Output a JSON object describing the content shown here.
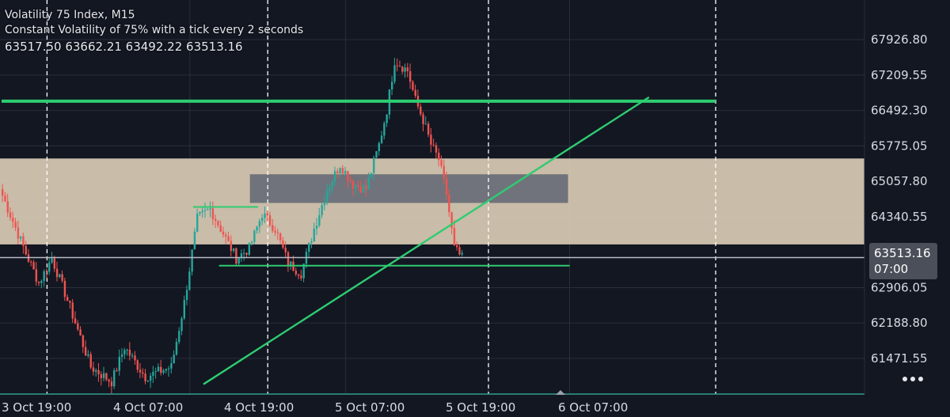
{
  "legend": {
    "symbol": "Volatility 75 Index, M15",
    "description": "Constant Volatility of 75% with a tick every 2 seconds",
    "ohlc": "63517.50 63662.21 63492.22 63513.16"
  },
  "price_tag": {
    "price": "63513.16",
    "countdown": "07:00"
  },
  "colors": {
    "background": "#131722",
    "grid": "#2a2e39",
    "up": "#26a69a",
    "down": "#ef5350",
    "trendline": "#2ecc71",
    "zone": "#d9cbb4",
    "inner_zone": "#6b6f78"
  },
  "chart_data": {
    "type": "candlestick",
    "ylim": [
      60900,
      68300
    ],
    "y_ticks": [
      "67926.80",
      "67209.55",
      "66492.30",
      "65775.05",
      "65057.80",
      "64340.55",
      "62906.05",
      "62188.80",
      "61471.55"
    ],
    "x_ticks": [
      "3 Oct 19:00",
      "4 Oct 07:00",
      "4 Oct 19:00",
      "5 Oct 07:00",
      "5 Oct 19:00",
      "6 Oct 07:00"
    ],
    "session_markers": [
      "3 Oct 19:00",
      "4 Oct 19:00",
      "5 Oct 19:00",
      "6 Oct 07:00"
    ],
    "last_price": 63513.16,
    "horizontal_levels": [
      {
        "value": 66680,
        "from": 0,
        "to": 220
      },
      {
        "value": 64540,
        "from": 59,
        "to": 79
      },
      {
        "value": 63350,
        "from": 67,
        "to": 175
      }
    ],
    "zones": [
      {
        "from_value": 63780,
        "to_value": 65520,
        "start": 0,
        "end": 220
      },
      {
        "from_value": 64620,
        "to_value": 65200,
        "start": 77,
        "end": 175
      }
    ],
    "trendline": {
      "from": [
        50,
        60950
      ],
      "to": [
        158,
        66760
      ]
    },
    "candle_path": [
      [
        0,
        64900
      ],
      [
        8,
        63600
      ],
      [
        12,
        63000
      ],
      [
        16,
        63500
      ],
      [
        20,
        62800
      ],
      [
        28,
        61300
      ],
      [
        34,
        61000
      ],
      [
        38,
        61700
      ],
      [
        44,
        61100
      ],
      [
        52,
        61300
      ],
      [
        56,
        62600
      ],
      [
        60,
        64300
      ],
      [
        64,
        64500
      ],
      [
        68,
        64000
      ],
      [
        72,
        63500
      ],
      [
        76,
        63700
      ],
      [
        80,
        64400
      ],
      [
        84,
        64100
      ],
      [
        88,
        63400
      ],
      [
        92,
        63200
      ],
      [
        96,
        64100
      ],
      [
        100,
        64900
      ],
      [
        104,
        65400
      ],
      [
        108,
        65000
      ],
      [
        112,
        64900
      ],
      [
        116,
        65800
      ],
      [
        118,
        66500
      ],
      [
        120,
        67500
      ],
      [
        124,
        67300
      ],
      [
        126,
        66700
      ],
      [
        128,
        66300
      ],
      [
        130,
        65800
      ],
      [
        132,
        65500
      ],
      [
        134,
        64800
      ],
      [
        136,
        63700
      ],
      [
        138,
        63500
      ]
    ]
  }
}
